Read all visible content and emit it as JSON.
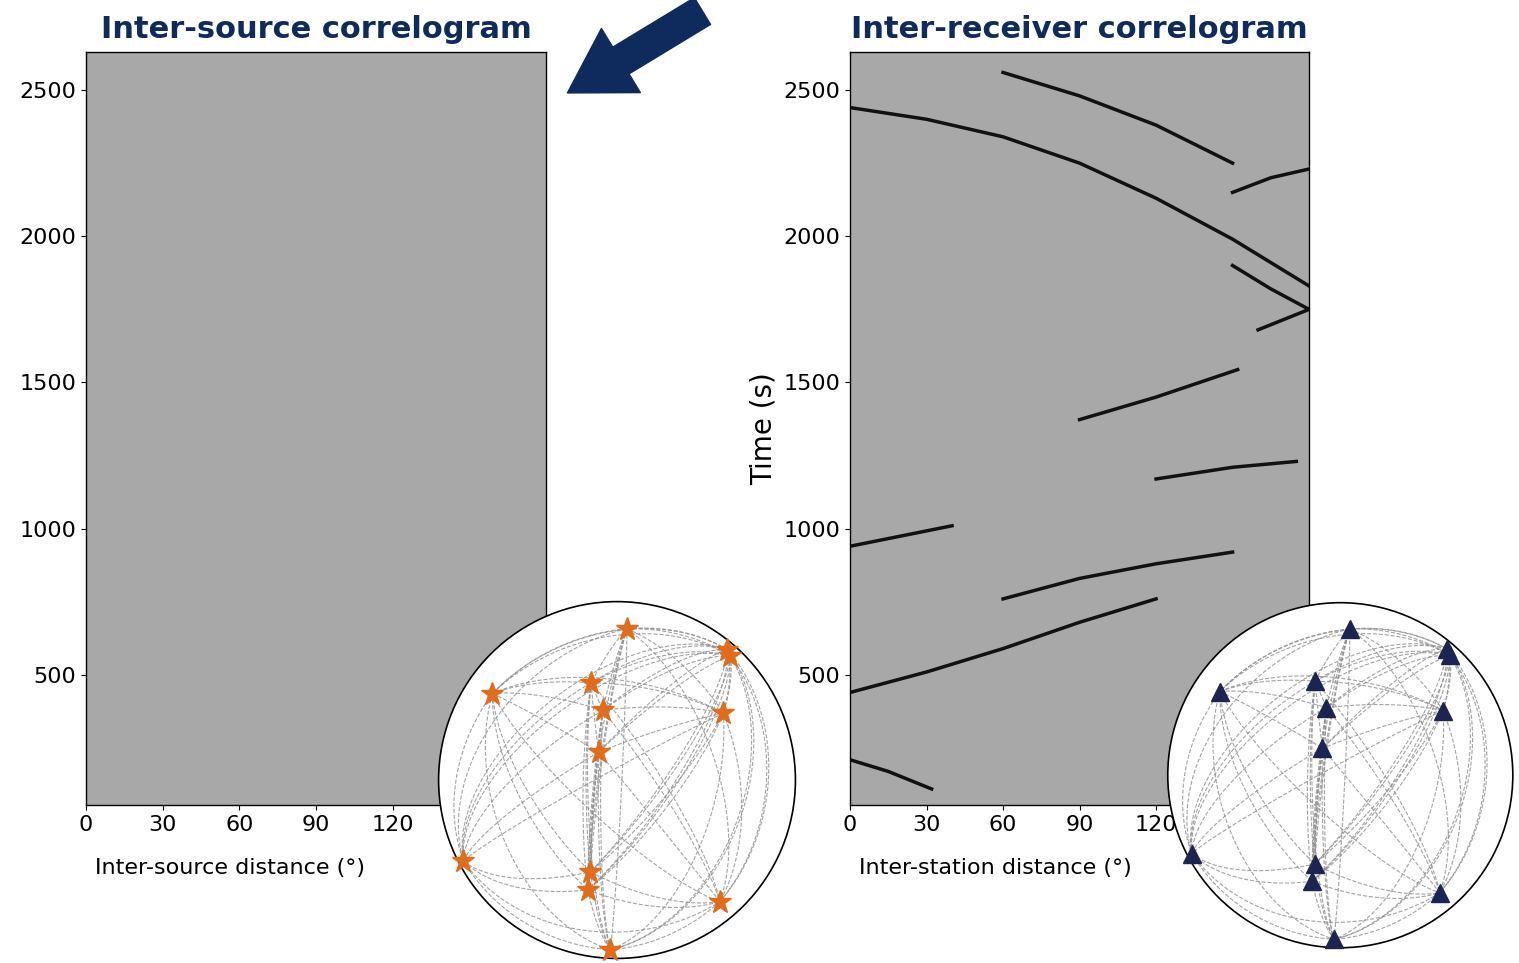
{
  "chart_data": [
    {
      "type": "line",
      "title": "Inter-source correlogram",
      "xlabel": "Inter-source distance (°)",
      "xlim": [
        0,
        180
      ],
      "ylim": [
        55,
        2630
      ],
      "xticks": [
        0,
        30,
        60,
        90,
        120
      ],
      "yticks": [
        500,
        1000,
        1500,
        2000,
        2500
      ],
      "series": [],
      "inset": {
        "type": "map",
        "marker": "star",
        "color": "#e06c1c",
        "stations": {
          "lon": [
            -54,
            5,
            2,
            -113,
            -70,
            -65,
            -20,
            -66,
            -135,
            -70,
            -72,
            -8,
            -67
          ],
          "lat": [
            58,
            47,
            44,
            29,
            33,
            23,
            22,
            9,
            -27,
            -31,
            -38,
            -43,
            -72
          ]
        }
      }
    },
    {
      "type": "line",
      "title": "Inter-receiver correlogram",
      "xlabel": "Inter-station distance (°)",
      "ylabel": "Time (s)",
      "xlim": [
        0,
        180
      ],
      "ylim": [
        55,
        2630
      ],
      "xticks": [
        0,
        30,
        60,
        90,
        120
      ],
      "yticks": [
        500,
        1000,
        1500,
        2000,
        2500
      ],
      "color": "#111111",
      "series": [
        {
          "x": [
            0,
            15,
            32
          ],
          "values": [
            210,
            170,
            110
          ]
        },
        {
          "x": [
            0,
            30,
            60,
            90,
            120
          ],
          "values": [
            440,
            510,
            590,
            680,
            760
          ]
        },
        {
          "x": [
            60,
            90,
            120,
            150
          ],
          "values": [
            760,
            830,
            880,
            920
          ]
        },
        {
          "x": [
            0,
            20,
            40
          ],
          "values": [
            940,
            975,
            1010
          ]
        },
        {
          "x": [
            90,
            120,
            152
          ],
          "values": [
            1373,
            1450,
            1544
          ]
        },
        {
          "x": [
            120,
            150,
            175
          ],
          "values": [
            1170,
            1210,
            1230
          ]
        },
        {
          "x": [
            150,
            165,
            180
          ],
          "values": [
            1900,
            1820,
            1750
          ]
        },
        {
          "x": [
            160,
            180
          ],
          "values": [
            1680,
            1750
          ]
        },
        {
          "x": [
            0,
            30,
            60,
            90,
            120,
            150,
            180
          ],
          "values": [
            2440,
            2400,
            2340,
            2250,
            2130,
            1990,
            1830
          ]
        },
        {
          "x": [
            60,
            90,
            120,
            150
          ],
          "values": [
            2560,
            2480,
            2380,
            2250
          ]
        },
        {
          "x": [
            150,
            165,
            180
          ],
          "values": [
            2150,
            2200,
            2230
          ]
        }
      ],
      "inset": {
        "type": "map",
        "marker": "triangle",
        "color": "#1c2451",
        "stations": {
          "lon": [
            -54,
            5,
            2,
            -113,
            -70,
            -65,
            -20,
            -66,
            -135,
            -70,
            -72,
            -8,
            -67
          ],
          "lat": [
            58,
            47,
            44,
            29,
            33,
            23,
            22,
            9,
            -27,
            -31,
            -38,
            -43,
            -72
          ]
        }
      }
    }
  ]
}
